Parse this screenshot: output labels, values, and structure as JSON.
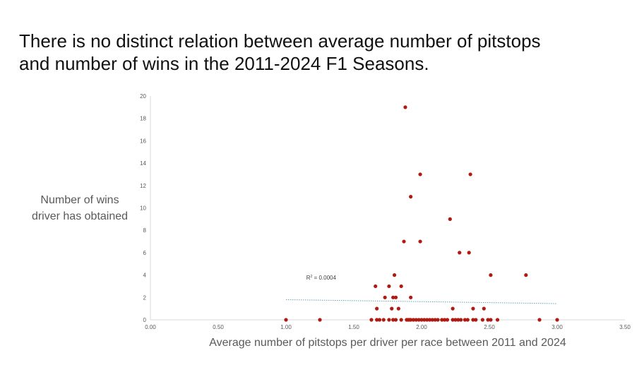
{
  "title": {
    "line1": "There is no distinct relation between average number of pitstops",
    "line2": "and number of wins in the 2011-2024 F1 Seasons."
  },
  "colors": {
    "point": "#b01a12",
    "axis": "#d9d9d9",
    "trendline": "#5fa8b0"
  },
  "chart_data": {
    "type": "scatter",
    "title": "",
    "xlabel": "Average number of pitstops per driver per race between 2011 and 2024",
    "ylabel_lines": [
      "Number of wins",
      "driver has obtained"
    ],
    "xlim": [
      0,
      3.5
    ],
    "ylim": [
      0,
      20
    ],
    "x_ticks": [
      0,
      0.5,
      1,
      1.5,
      2,
      2.5,
      3,
      3.5
    ],
    "x_tick_labels": [
      "0.00",
      "0.50",
      "1.00",
      "1.50",
      "2.00",
      "2.50",
      "3.00",
      "3.50"
    ],
    "y_ticks": [
      0,
      2,
      4,
      6,
      8,
      10,
      12,
      14,
      16,
      18,
      20
    ],
    "y_tick_labels": [
      "0",
      "2",
      "4",
      "6",
      "8",
      "10",
      "12",
      "14",
      "16",
      "18",
      "20"
    ],
    "grid": false,
    "legend": "none",
    "trendline": {
      "type": "linear",
      "from": [
        1.0,
        1.8
      ],
      "to": [
        3.0,
        1.45
      ],
      "label_sup": "2",
      "label_value": " = 0.0004",
      "label_prefix": "R",
      "label_at": [
        1.15,
        3.6
      ]
    },
    "points": [
      [
        1.0,
        0
      ],
      [
        1.25,
        0
      ],
      [
        1.63,
        0
      ],
      [
        1.67,
        0
      ],
      [
        1.69,
        0
      ],
      [
        1.72,
        0
      ],
      [
        1.76,
        0
      ],
      [
        1.79,
        0
      ],
      [
        1.81,
        0
      ],
      [
        1.85,
        0
      ],
      [
        1.89,
        0
      ],
      [
        1.9,
        0
      ],
      [
        1.91,
        0
      ],
      [
        1.92,
        0
      ],
      [
        1.94,
        0
      ],
      [
        1.96,
        0
      ],
      [
        1.98,
        0
      ],
      [
        2.0,
        0
      ],
      [
        2.02,
        0
      ],
      [
        2.04,
        0
      ],
      [
        2.06,
        0
      ],
      [
        2.08,
        0
      ],
      [
        2.1,
        0
      ],
      [
        2.12,
        0
      ],
      [
        2.15,
        0
      ],
      [
        2.17,
        0
      ],
      [
        2.19,
        0
      ],
      [
        2.23,
        0
      ],
      [
        2.25,
        0
      ],
      [
        2.27,
        0
      ],
      [
        2.29,
        0
      ],
      [
        2.32,
        0
      ],
      [
        2.34,
        0
      ],
      [
        2.38,
        0
      ],
      [
        2.4,
        0
      ],
      [
        2.45,
        0
      ],
      [
        2.49,
        0
      ],
      [
        2.51,
        0
      ],
      [
        2.56,
        0
      ],
      [
        2.87,
        0
      ],
      [
        3.0,
        0
      ],
      [
        1.67,
        1
      ],
      [
        1.78,
        1
      ],
      [
        1.83,
        1
      ],
      [
        2.23,
        1
      ],
      [
        2.38,
        1
      ],
      [
        2.46,
        1
      ],
      [
        1.73,
        2
      ],
      [
        1.79,
        2
      ],
      [
        1.81,
        2
      ],
      [
        1.92,
        2
      ],
      [
        1.66,
        3
      ],
      [
        1.76,
        3
      ],
      [
        1.85,
        3
      ],
      [
        1.8,
        4
      ],
      [
        2.51,
        4
      ],
      [
        2.77,
        4
      ],
      [
        2.28,
        6
      ],
      [
        2.35,
        6
      ],
      [
        1.87,
        7
      ],
      [
        1.99,
        7
      ],
      [
        2.21,
        9
      ],
      [
        1.92,
        11
      ],
      [
        1.99,
        13
      ],
      [
        2.36,
        13
      ],
      [
        1.88,
        19
      ]
    ]
  }
}
